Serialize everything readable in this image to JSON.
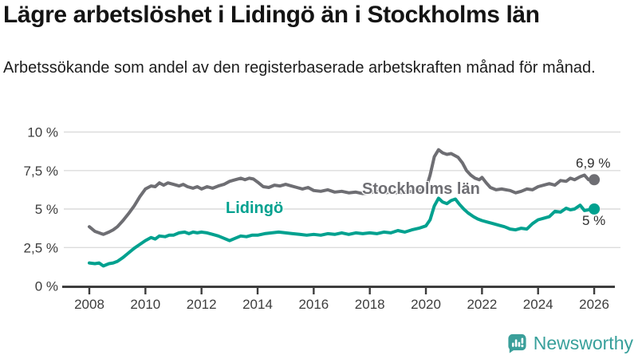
{
  "header": {
    "title": "Lägre arbetslöshet i Lidingö än i Stockholms län",
    "subtitle": "Arbetssökande som andel av den registerbaserade arbetskraften månad för månad."
  },
  "footer": {
    "brand": "Newsworthy",
    "logo_icon": "bar-chart-speech-bubble-icon",
    "brand_color": "#38a09b"
  },
  "chart_data": {
    "type": "line",
    "title": "",
    "xlabel": "",
    "ylabel": "",
    "unit": "%",
    "grid": "horizontal",
    "legend": "inline-labels",
    "xlim": [
      2007.8,
      2026.8
    ],
    "ylim": [
      0,
      10
    ],
    "x_ticks": {
      "values": [
        2008,
        2010,
        2012,
        2014,
        2016,
        2018,
        2020,
        2022,
        2024,
        2026
      ],
      "labels": [
        "2008",
        "2010",
        "2012",
        "2014",
        "2016",
        "2018",
        "2020",
        "2022",
        "2024",
        "2026"
      ]
    },
    "y_ticks": {
      "values": [
        0,
        2.5,
        5,
        7.5,
        10
      ],
      "labels": [
        "0 %",
        "2,5 %",
        "5 %",
        "7,5 %",
        "10 %"
      ]
    },
    "axis_color": "#3d3d3d",
    "grid_color": "#dcdcdc",
    "series": [
      {
        "name": "Stockholms län",
        "color": "#6e6e73",
        "end_label": "6,9 %",
        "end_value": 6.9,
        "points": [
          [
            2008.0,
            3.85
          ],
          [
            2008.2,
            3.55
          ],
          [
            2008.35,
            3.45
          ],
          [
            2008.5,
            3.35
          ],
          [
            2008.7,
            3.5
          ],
          [
            2008.85,
            3.65
          ],
          [
            2009.0,
            3.85
          ],
          [
            2009.2,
            4.25
          ],
          [
            2009.4,
            4.7
          ],
          [
            2009.6,
            5.2
          ],
          [
            2009.8,
            5.8
          ],
          [
            2010.0,
            6.3
          ],
          [
            2010.2,
            6.5
          ],
          [
            2010.35,
            6.45
          ],
          [
            2010.5,
            6.7
          ],
          [
            2010.65,
            6.55
          ],
          [
            2010.8,
            6.7
          ],
          [
            2011.0,
            6.6
          ],
          [
            2011.2,
            6.5
          ],
          [
            2011.35,
            6.6
          ],
          [
            2011.5,
            6.45
          ],
          [
            2011.7,
            6.35
          ],
          [
            2011.85,
            6.45
          ],
          [
            2012.0,
            6.3
          ],
          [
            2012.2,
            6.45
          ],
          [
            2012.4,
            6.35
          ],
          [
            2012.6,
            6.5
          ],
          [
            2012.8,
            6.6
          ],
          [
            2013.0,
            6.8
          ],
          [
            2013.2,
            6.9
          ],
          [
            2013.4,
            7.0
          ],
          [
            2013.55,
            6.9
          ],
          [
            2013.7,
            7.0
          ],
          [
            2013.85,
            6.95
          ],
          [
            2014.0,
            6.75
          ],
          [
            2014.2,
            6.45
          ],
          [
            2014.4,
            6.4
          ],
          [
            2014.6,
            6.55
          ],
          [
            2014.8,
            6.5
          ],
          [
            2015.0,
            6.6
          ],
          [
            2015.2,
            6.5
          ],
          [
            2015.4,
            6.4
          ],
          [
            2015.6,
            6.3
          ],
          [
            2015.8,
            6.4
          ],
          [
            2016.0,
            6.2
          ],
          [
            2016.25,
            6.15
          ],
          [
            2016.5,
            6.25
          ],
          [
            2016.75,
            6.1
          ],
          [
            2017.0,
            6.15
          ],
          [
            2017.25,
            6.05
          ],
          [
            2017.5,
            6.1
          ],
          [
            2017.75,
            6.0
          ],
          [
            2018.0,
            6.05
          ],
          [
            2018.25,
            6.15
          ],
          [
            2018.5,
            6.05
          ],
          [
            2018.75,
            6.1
          ],
          [
            2019.0,
            6.05
          ],
          [
            2019.25,
            6.1
          ],
          [
            2019.5,
            6.15
          ],
          [
            2019.75,
            6.2
          ],
          [
            2020.0,
            6.3
          ],
          [
            2020.15,
            7.2
          ],
          [
            2020.3,
            8.4
          ],
          [
            2020.45,
            8.85
          ],
          [
            2020.6,
            8.65
          ],
          [
            2020.75,
            8.55
          ],
          [
            2020.9,
            8.6
          ],
          [
            2021.0,
            8.5
          ],
          [
            2021.15,
            8.35
          ],
          [
            2021.3,
            8.0
          ],
          [
            2021.45,
            7.5
          ],
          [
            2021.6,
            7.2
          ],
          [
            2021.75,
            7.0
          ],
          [
            2021.9,
            6.9
          ],
          [
            2022.0,
            7.05
          ],
          [
            2022.15,
            6.7
          ],
          [
            2022.3,
            6.4
          ],
          [
            2022.5,
            6.25
          ],
          [
            2022.7,
            6.3
          ],
          [
            2022.85,
            6.25
          ],
          [
            2023.0,
            6.2
          ],
          [
            2023.2,
            6.05
          ],
          [
            2023.4,
            6.15
          ],
          [
            2023.6,
            6.3
          ],
          [
            2023.8,
            6.25
          ],
          [
            2024.0,
            6.45
          ],
          [
            2024.2,
            6.55
          ],
          [
            2024.4,
            6.65
          ],
          [
            2024.6,
            6.55
          ],
          [
            2024.8,
            6.85
          ],
          [
            2025.0,
            6.8
          ],
          [
            2025.15,
            7.0
          ],
          [
            2025.3,
            6.9
          ],
          [
            2025.5,
            7.1
          ],
          [
            2025.65,
            7.2
          ],
          [
            2025.8,
            6.9
          ],
          [
            2026.0,
            6.9
          ]
        ]
      },
      {
        "name": "Lidingö",
        "color": "#00a18f",
        "end_label": "5 %",
        "end_value": 5.0,
        "points": [
          [
            2008.0,
            1.5
          ],
          [
            2008.2,
            1.45
          ],
          [
            2008.35,
            1.5
          ],
          [
            2008.5,
            1.3
          ],
          [
            2008.7,
            1.45
          ],
          [
            2008.85,
            1.5
          ],
          [
            2009.0,
            1.6
          ],
          [
            2009.2,
            1.85
          ],
          [
            2009.4,
            2.15
          ],
          [
            2009.6,
            2.45
          ],
          [
            2009.8,
            2.7
          ],
          [
            2010.0,
            2.95
          ],
          [
            2010.2,
            3.15
          ],
          [
            2010.35,
            3.05
          ],
          [
            2010.5,
            3.25
          ],
          [
            2010.7,
            3.2
          ],
          [
            2010.85,
            3.3
          ],
          [
            2011.0,
            3.3
          ],
          [
            2011.2,
            3.45
          ],
          [
            2011.4,
            3.5
          ],
          [
            2011.55,
            3.4
          ],
          [
            2011.7,
            3.5
          ],
          [
            2011.85,
            3.45
          ],
          [
            2012.0,
            3.5
          ],
          [
            2012.2,
            3.45
          ],
          [
            2012.4,
            3.35
          ],
          [
            2012.6,
            3.25
          ],
          [
            2012.8,
            3.1
          ],
          [
            2013.0,
            2.95
          ],
          [
            2013.2,
            3.1
          ],
          [
            2013.4,
            3.25
          ],
          [
            2013.6,
            3.2
          ],
          [
            2013.8,
            3.3
          ],
          [
            2014.0,
            3.3
          ],
          [
            2014.25,
            3.4
          ],
          [
            2014.5,
            3.45
          ],
          [
            2014.75,
            3.5
          ],
          [
            2015.0,
            3.45
          ],
          [
            2015.25,
            3.4
          ],
          [
            2015.5,
            3.35
          ],
          [
            2015.75,
            3.3
          ],
          [
            2016.0,
            3.35
          ],
          [
            2016.25,
            3.3
          ],
          [
            2016.5,
            3.4
          ],
          [
            2016.75,
            3.35
          ],
          [
            2017.0,
            3.45
          ],
          [
            2017.25,
            3.35
          ],
          [
            2017.5,
            3.45
          ],
          [
            2017.75,
            3.4
          ],
          [
            2018.0,
            3.45
          ],
          [
            2018.25,
            3.4
          ],
          [
            2018.5,
            3.5
          ],
          [
            2018.75,
            3.45
          ],
          [
            2019.0,
            3.6
          ],
          [
            2019.25,
            3.5
          ],
          [
            2019.5,
            3.65
          ],
          [
            2019.75,
            3.75
          ],
          [
            2020.0,
            3.9
          ],
          [
            2020.15,
            4.3
          ],
          [
            2020.3,
            5.2
          ],
          [
            2020.45,
            5.7
          ],
          [
            2020.6,
            5.45
          ],
          [
            2020.75,
            5.35
          ],
          [
            2020.9,
            5.55
          ],
          [
            2021.05,
            5.65
          ],
          [
            2021.2,
            5.3
          ],
          [
            2021.35,
            5.0
          ],
          [
            2021.5,
            4.75
          ],
          [
            2021.7,
            4.5
          ],
          [
            2021.85,
            4.35
          ],
          [
            2022.0,
            4.25
          ],
          [
            2022.2,
            4.15
          ],
          [
            2022.4,
            4.05
          ],
          [
            2022.6,
            3.95
          ],
          [
            2022.8,
            3.85
          ],
          [
            2023.0,
            3.7
          ],
          [
            2023.2,
            3.65
          ],
          [
            2023.4,
            3.75
          ],
          [
            2023.6,
            3.7
          ],
          [
            2023.8,
            4.05
          ],
          [
            2024.0,
            4.3
          ],
          [
            2024.2,
            4.4
          ],
          [
            2024.4,
            4.5
          ],
          [
            2024.6,
            4.85
          ],
          [
            2024.8,
            4.8
          ],
          [
            2025.0,
            5.05
          ],
          [
            2025.15,
            4.95
          ],
          [
            2025.3,
            5.0
          ],
          [
            2025.5,
            5.25
          ],
          [
            2025.65,
            4.9
          ],
          [
            2025.8,
            4.95
          ],
          [
            2026.0,
            5.0
          ]
        ]
      }
    ]
  }
}
